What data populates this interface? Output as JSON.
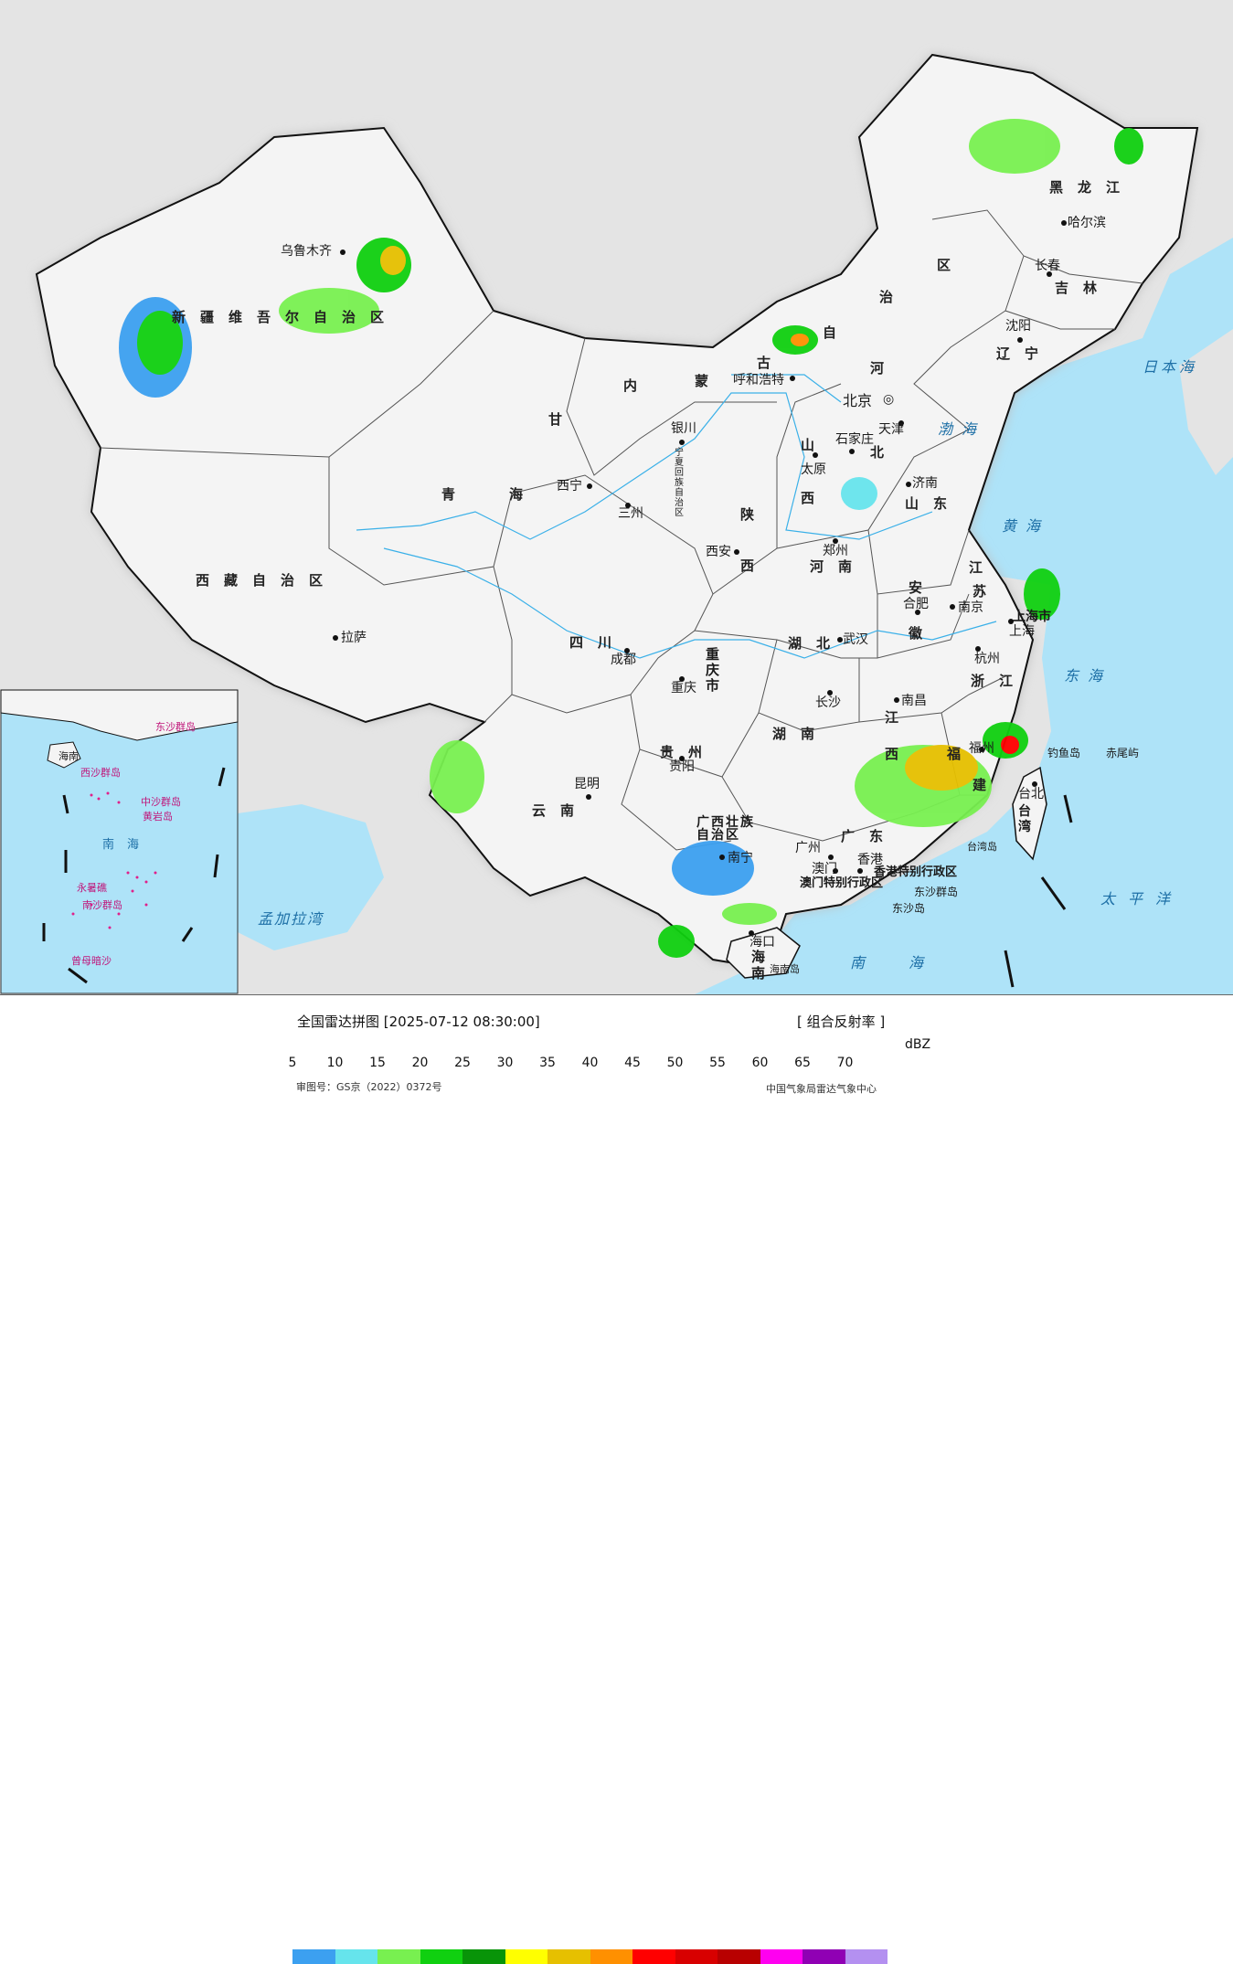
{
  "header": {
    "title": "全国雷达拼图 [2025-07-12 08:30:00]",
    "product": "[ 组合反射率 ]",
    "unit": "dBZ"
  },
  "legend": {
    "colors": [
      "#3ca0f0",
      "#66e4ec",
      "#78f050",
      "#10d010",
      "#089408",
      "#ffff00",
      "#e6c000",
      "#ff9000",
      "#ff0000",
      "#d80000",
      "#b80000",
      "#ff00f0",
      "#9000b4",
      "#b490f0"
    ],
    "ticks": [
      "5",
      "10",
      "15",
      "20",
      "25",
      "30",
      "35",
      "40",
      "45",
      "50",
      "55",
      "60",
      "65",
      "70"
    ]
  },
  "credits": {
    "approval": "审图号：GS京（2022）0372号",
    "agency": "中国气象局雷达气象中心"
  },
  "regions": {
    "xinjiang": "新疆维吾尔自治区",
    "tibet": "西藏自治区",
    "qinghai_a": "青",
    "qinghai_b": "海",
    "neimenggu": [
      "内",
      "蒙",
      "古",
      "自",
      "治",
      "区"
    ],
    "heilongjiang": "黑龙江",
    "jilin": "吉林",
    "liaoning": "辽宁",
    "hebei_a": "河",
    "hebei_b": "北",
    "shanxi_a": "山",
    "shanxi_b": "西",
    "shandong": "山东",
    "henan": "河南",
    "jiangsu_a": "江",
    "jiangsu_b": "苏",
    "anhui_a": "安",
    "anhui_b": "徽",
    "hubei": "湖北",
    "hunan": "湖南",
    "jiangxi_a": "江",
    "jiangxi_b": "西",
    "zhejiang": "浙江",
    "fujian_a": "福",
    "fujian_b": "建",
    "guangdong": "广东",
    "guangxi": "广西壮族自治区",
    "yunnan": "云南",
    "guizhou": "贵州",
    "sichuan": "四川",
    "chongqing": "重庆市",
    "shaanxi_a": "陕",
    "shaanxi_b": "西",
    "gansu": "甘",
    "ningxia": "宁夏回族自治区",
    "hainan": "海南",
    "taiwan": "台湾",
    "shanghai": "上海市",
    "hongkong": "香港特别行政区",
    "macao": "澳门特别行政区"
  },
  "cities": {
    "urumqi": "乌鲁木齐",
    "lhasa": "拉萨",
    "xining": "西宁",
    "lanzhou": "三州",
    "yinchuan": "银川",
    "hohhot": "呼和浩特",
    "beijing": "北京",
    "tianjin": "天津",
    "shijiazhuang": "石家庄",
    "taiyuan": "太原",
    "jinan": "济南",
    "zhengzhou": "郑州",
    "xian": "西安",
    "chengdu": "成都",
    "chongqing": "重庆",
    "wuhan": "武汉",
    "hefei": "合肥",
    "nanjing": "南京",
    "shanghai": "上海",
    "hangzhou": "杭州",
    "nanchang": "南昌",
    "changsha": "长沙",
    "guiyang": "贵阳",
    "kunming": "昆明",
    "nanning": "南宁",
    "guangzhou": "广州",
    "macau": "澳门",
    "hongkong": "香港",
    "haikou": "海口",
    "fuzhou": "福州",
    "taibei": "台北",
    "harbin": "哈尔滨",
    "changchun": "长春",
    "shenyang": "沈阳"
  },
  "seas": {
    "bohai": "渤海",
    "huanghai": "黄海",
    "donghai": "东海",
    "nanhai": "南海",
    "taipingyang": "太平洋",
    "ribenhai": "日本海",
    "mengjiala": "孟加拉湾"
  },
  "islands": {
    "diaoyu": "钓鱼岛",
    "chiwei": "赤尾屿",
    "dongsha": "东沙群岛",
    "dongsha2": "东沙岛",
    "taiwandao": "台湾岛",
    "hainandao": "海南岛"
  },
  "inset": {
    "nanhai": "南海",
    "hainan": "海南",
    "xisha": "西沙群岛",
    "zhongsha": "中沙群岛",
    "nansha": "南沙群岛",
    "huangyan": "黄岩岛",
    "dongsha": "东沙群岛",
    "yongshu": "永暑礁",
    "zengmu": "曾母暗沙"
  }
}
